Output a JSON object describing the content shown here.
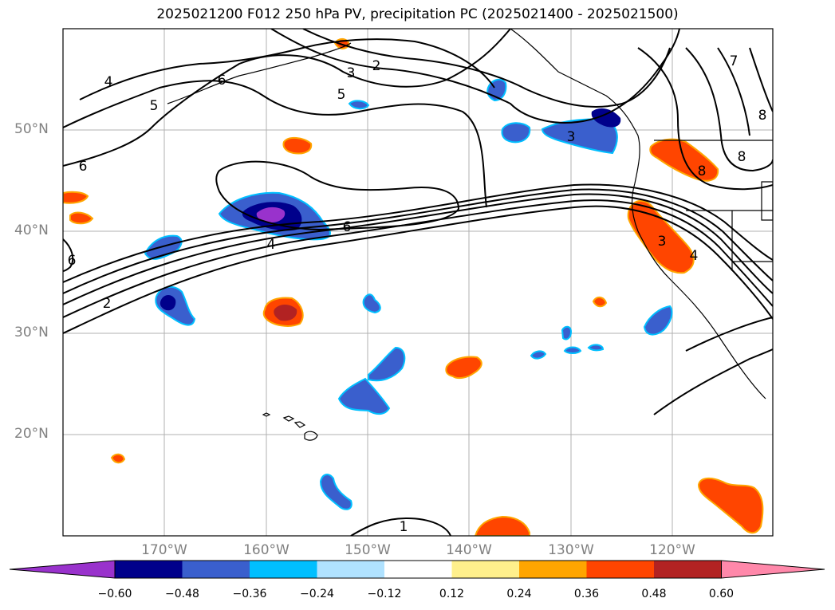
{
  "title": "2025021200 F012 250 hPa PV, precipitation PC (2025021400 - 2025021500)",
  "axes": {
    "lat_labels": [
      "50°N",
      "40°N",
      "30°N",
      "20°N"
    ],
    "lon_labels": [
      "170°W",
      "160°W",
      "150°W",
      "140°W",
      "130°W",
      "120°W"
    ]
  },
  "colorbar": {
    "ticks": [
      "−0.60",
      "−0.48",
      "−0.36",
      "−0.24",
      "−0.12",
      "0.12",
      "0.24",
      "0.36",
      "0.48",
      "0.60"
    ],
    "colors": [
      "#9932cc",
      "#00008b",
      "#3a5fcd",
      "#00bfff",
      "#b0e2ff",
      "#ffffff",
      "#fff08c",
      "#ffa500",
      "#ff4500",
      "#b22222",
      "#ff88aa"
    ]
  },
  "contour_labels": [
    "4",
    "5",
    "6",
    "6",
    "2",
    "3",
    "5",
    "3",
    "7",
    "8",
    "8",
    "6",
    "4",
    "6",
    "2",
    "3",
    "4",
    "1",
    "8"
  ]
}
